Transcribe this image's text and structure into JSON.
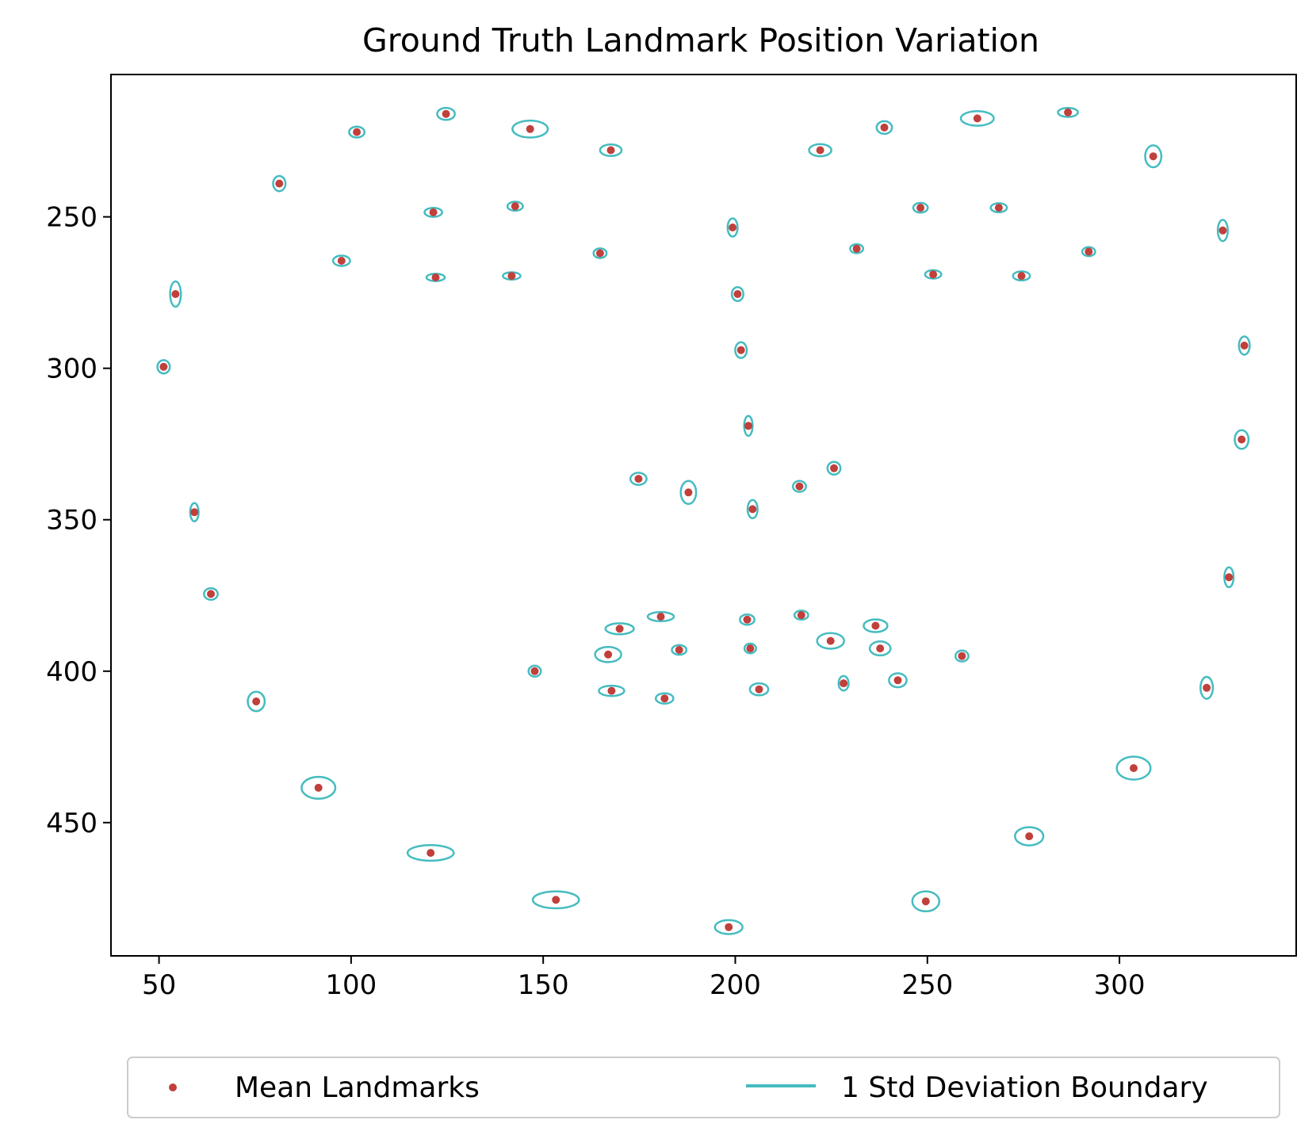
{
  "chart_data": {
    "type": "scatter",
    "title": "Ground Truth Landmark Position Variation",
    "xlabel": "",
    "ylabel": "",
    "xlim": [
      37.5,
      346
    ],
    "ylim": [
      494,
      203
    ],
    "y_inverted": true,
    "grid": false,
    "x_ticks": [
      50,
      100,
      150,
      200,
      250,
      300
    ],
    "y_ticks": [
      250,
      300,
      350,
      400,
      450
    ],
    "legend_position": "bottom",
    "legend": {
      "mean_label": "Mean Landmarks",
      "std_label": "1 Std Deviation Boundary"
    },
    "colors": {
      "mean": "#c0403c",
      "std": "#45bcc0"
    },
    "series": [
      {
        "name": "Mean Landmarks",
        "points": [
          [
            51.2,
            299.5
          ],
          [
            54.3,
            275.5
          ],
          [
            59.2,
            347.5
          ],
          [
            63.5,
            374.5
          ],
          [
            75.3,
            410.0
          ],
          [
            91.5,
            438.5
          ],
          [
            120.7,
            460.0
          ],
          [
            153.3,
            475.5
          ],
          [
            198.3,
            484.5
          ],
          [
            249.6,
            476.0
          ],
          [
            276.5,
            454.5
          ],
          [
            303.7,
            432.0
          ],
          [
            322.7,
            405.5
          ],
          [
            328.5,
            369.0
          ],
          [
            331.8,
            323.5
          ],
          [
            332.5,
            292.5
          ],
          [
            326.9,
            254.5
          ],
          [
            308.8,
            230.0
          ],
          [
            81.3,
            239.0
          ],
          [
            101.5,
            222.0
          ],
          [
            124.7,
            216.0
          ],
          [
            146.6,
            221.0
          ],
          [
            167.6,
            228.0
          ],
          [
            222.1,
            228.0
          ],
          [
            238.8,
            220.5
          ],
          [
            263.0,
            217.5
          ],
          [
            286.6,
            215.5
          ],
          [
            199.3,
            253.5
          ],
          [
            200.6,
            275.5
          ],
          [
            201.5,
            294.0
          ],
          [
            203.4,
            319.0
          ],
          [
            121.4,
            248.5
          ],
          [
            142.7,
            246.5
          ],
          [
            97.5,
            264.5
          ],
          [
            122.0,
            270.0
          ],
          [
            141.8,
            269.5
          ],
          [
            164.8,
            262.0
          ],
          [
            248.2,
            247.0
          ],
          [
            268.6,
            247.0
          ],
          [
            231.6,
            260.5
          ],
          [
            292.0,
            261.5
          ],
          [
            251.5,
            269.0
          ],
          [
            274.5,
            269.5
          ],
          [
            174.8,
            336.5
          ],
          [
            187.8,
            341.0
          ],
          [
            204.5,
            346.5
          ],
          [
            216.7,
            339.0
          ],
          [
            225.7,
            333.0
          ],
          [
            147.8,
            400.0
          ],
          [
            166.9,
            394.5
          ],
          [
            167.8,
            406.5
          ],
          [
            169.9,
            386.0
          ],
          [
            180.6,
            382.0
          ],
          [
            185.4,
            393.0
          ],
          [
            181.6,
            409.0
          ],
          [
            203.1,
            383.0
          ],
          [
            203.9,
            392.5
          ],
          [
            206.2,
            406.0
          ],
          [
            217.2,
            381.5
          ],
          [
            224.8,
            390.0
          ],
          [
            236.5,
            385.0
          ],
          [
            237.7,
            392.5
          ],
          [
            228.2,
            404.0
          ],
          [
            242.3,
            403.0
          ],
          [
            259.0,
            395.0
          ]
        ]
      },
      {
        "name": "1 Std Deviation Boundary",
        "ellipses": [
          [
            1.6,
            2.2
          ],
          [
            1.4,
            4.2
          ],
          [
            1.1,
            3.0
          ],
          [
            1.8,
            1.9
          ],
          [
            2.2,
            3.2
          ],
          [
            4.4,
            3.6
          ],
          [
            6.0,
            2.6
          ],
          [
            6.0,
            2.8
          ],
          [
            3.6,
            2.3
          ],
          [
            3.5,
            3.3
          ],
          [
            3.7,
            3.0
          ],
          [
            4.4,
            3.8
          ],
          [
            1.6,
            3.6
          ],
          [
            1.2,
            3.3
          ],
          [
            1.8,
            3.1
          ],
          [
            1.4,
            3.0
          ],
          [
            1.3,
            3.5
          ],
          [
            2.1,
            3.6
          ],
          [
            1.6,
            2.5
          ],
          [
            2.0,
            1.8
          ],
          [
            2.3,
            2.0
          ],
          [
            4.6,
            2.8
          ],
          [
            2.8,
            1.9
          ],
          [
            2.9,
            2.0
          ],
          [
            2.0,
            2.1
          ],
          [
            4.3,
            2.4
          ],
          [
            2.6,
            1.5
          ],
          [
            1.3,
            3.0
          ],
          [
            1.5,
            2.3
          ],
          [
            1.5,
            2.6
          ],
          [
            1.1,
            3.3
          ],
          [
            2.3,
            1.5
          ],
          [
            2.0,
            1.5
          ],
          [
            2.2,
            1.7
          ],
          [
            2.4,
            1.2
          ],
          [
            2.3,
            1.2
          ],
          [
            1.7,
            1.6
          ],
          [
            1.9,
            1.6
          ],
          [
            2.1,
            1.5
          ],
          [
            1.7,
            1.5
          ],
          [
            1.7,
            1.5
          ],
          [
            2.1,
            1.4
          ],
          [
            2.2,
            1.5
          ],
          [
            2.1,
            2.0
          ],
          [
            2.0,
            3.8
          ],
          [
            1.3,
            3.0
          ],
          [
            1.7,
            1.8
          ],
          [
            1.7,
            2.1
          ],
          [
            1.6,
            1.8
          ],
          [
            3.4,
            2.5
          ],
          [
            3.3,
            1.7
          ],
          [
            3.7,
            1.8
          ],
          [
            3.4,
            1.5
          ],
          [
            1.9,
            1.6
          ],
          [
            2.3,
            1.7
          ],
          [
            1.9,
            1.7
          ],
          [
            1.5,
            1.6
          ],
          [
            2.4,
            2.0
          ],
          [
            1.8,
            1.5
          ],
          [
            3.5,
            2.6
          ],
          [
            3.1,
            2.1
          ],
          [
            2.7,
            2.3
          ],
          [
            1.3,
            2.4
          ],
          [
            2.3,
            2.3
          ],
          [
            1.7,
            1.8
          ]
        ]
      }
    ]
  }
}
